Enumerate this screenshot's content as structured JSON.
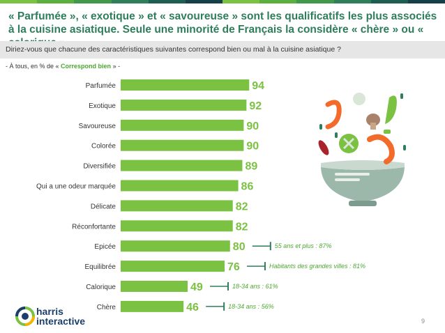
{
  "title": "« Parfumée », « exotique » et « savoureuse » sont les qualificatifs les plus associés à la cuisine asiatique. Seule une minorité de Français la considère « chère » ou « calorique »",
  "question": "Diriez-vous que chacune des caractéristiques suivantes correspond bien ou mal à la cuisine asiatique ?",
  "base": {
    "prefix": "- À tous, en % de « ",
    "highlight": "Correspond bien",
    "suffix": " » -"
  },
  "colors": {
    "bar": "#7bc142",
    "value_text": "#7bc142",
    "annotation": "#4aa82f",
    "annotation_line": "#2e7d5b",
    "title": "#2e7d5b",
    "stripe": [
      "#7bc142",
      "#5cae3f",
      "#3e9a4a",
      "#2e7d5b",
      "#1e5e52",
      "#163f4a",
      "#7bc142",
      "#5cae3f",
      "#3e9a4a",
      "#2e7d5b",
      "#1e5e52",
      "#163f4a"
    ]
  },
  "chart_data": {
    "type": "bar",
    "orientation": "horizontal",
    "categories": [
      "Parfumée",
      "Exotique",
      "Savoureuse",
      "Colorée",
      "Diversifiée",
      "Qui a une odeur marquée",
      "Délicate",
      "Réconfortante",
      "Epicée",
      "Equilibrée",
      "Calorique",
      "Chère"
    ],
    "values": [
      94,
      92,
      90,
      90,
      89,
      86,
      82,
      82,
      80,
      76,
      49,
      46
    ],
    "annotations": [
      {
        "category": "Epicée",
        "text": "55 ans et plus : 87%"
      },
      {
        "category": "Equilibrée",
        "text": "Habitants des grandes villes : 81%"
      },
      {
        "category": "Calorique",
        "text": "18-34 ans : 61%"
      },
      {
        "category": "Chère",
        "text": "18-34 ans : 56%"
      }
    ],
    "xlim": [
      0,
      100
    ],
    "grid": false,
    "title": "",
    "xlabel": "",
    "ylabel": ""
  },
  "logo": {
    "line1": "harris",
    "line2": "interactive"
  },
  "page_number": "9",
  "illustration": {
    "name": "asian-food-bowl-icon"
  }
}
